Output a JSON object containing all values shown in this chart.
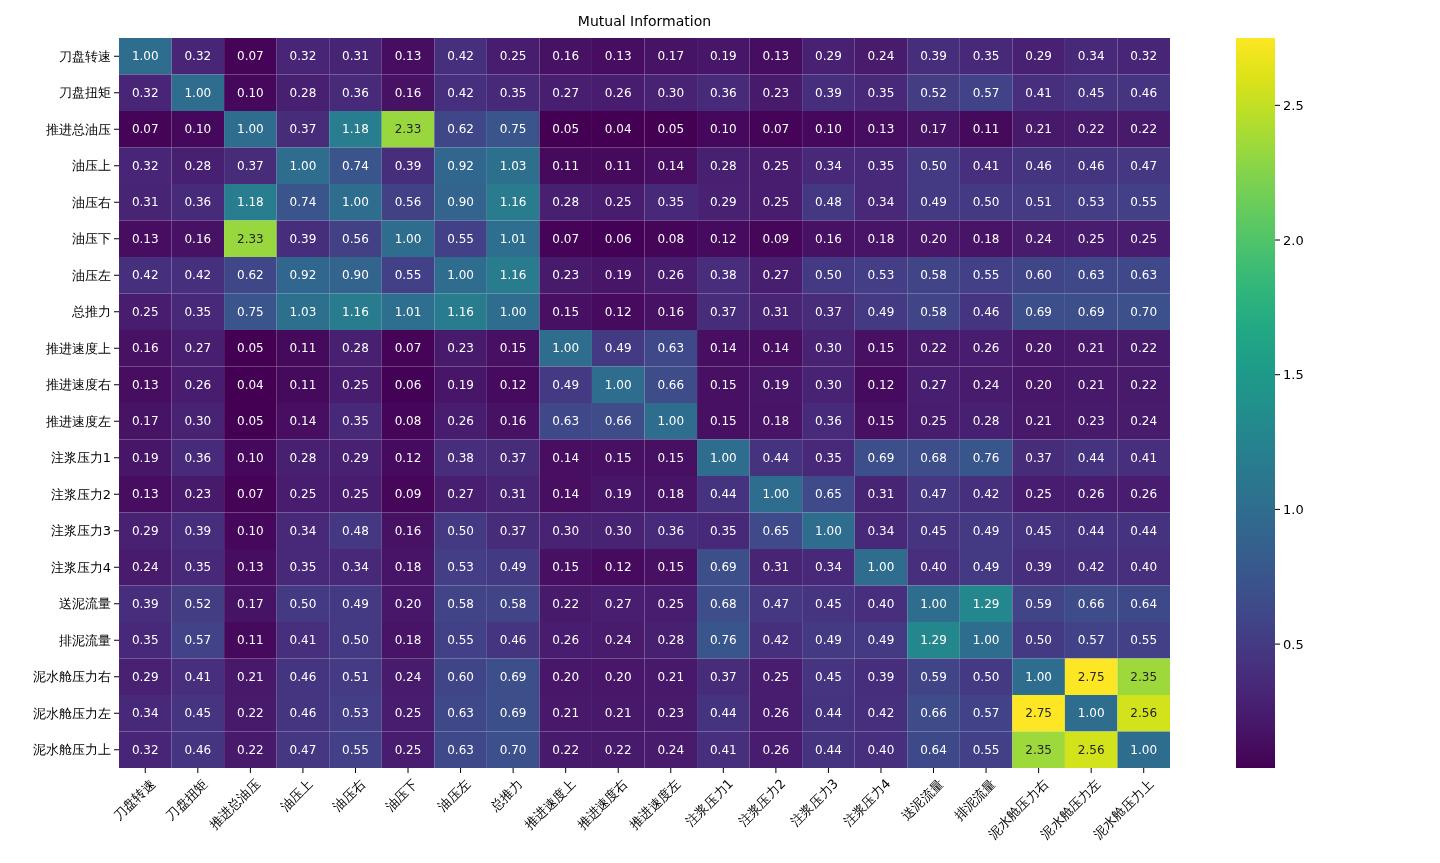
{
  "chart_data": {
    "type": "heatmap",
    "title": "Mutual Information",
    "categories": [
      "刀盘转速",
      "刀盘扭矩",
      "推进总油压",
      "油压上",
      "油压右",
      "油压下",
      "油压左",
      "总推力",
      "推进速度上",
      "推进速度右",
      "推进速度左",
      "注浆压力1",
      "注浆压力2",
      "注浆压力3",
      "注浆压力4",
      "送泥流量",
      "排泥流量",
      "泥水舱压力右",
      "泥水舱压力左",
      "泥水舱压力上"
    ],
    "y_categories": [
      "刀盘转速",
      "刀盘扭矩",
      "推进总油压",
      "油压上",
      "油压右",
      "油压下",
      "油压左",
      "总推力",
      "推进速度上",
      "推进速度右",
      "推进速度左",
      "注浆压力1",
      "注浆压力2",
      "注浆压力3",
      "注浆压力4",
      "送泥流量",
      "排泥流量",
      "泥水舱压力右",
      "泥水舱压力左",
      "泥水舱压力上"
    ],
    "cells": [
      [
        1.0,
        0.32,
        0.07,
        0.32,
        0.31,
        0.13,
        0.42,
        0.25,
        0.16,
        0.13,
        0.17,
        0.19,
        0.13,
        0.29,
        0.24,
        0.39,
        0.35,
        0.29,
        0.34,
        0.32
      ],
      [
        0.32,
        1.0,
        0.1,
        0.28,
        0.36,
        0.16,
        0.42,
        0.35,
        0.27,
        0.26,
        0.3,
        0.36,
        0.23,
        0.39,
        0.35,
        0.52,
        0.57,
        0.41,
        0.45,
        0.46
      ],
      [
        0.07,
        0.1,
        1.0,
        0.37,
        1.18,
        2.33,
        0.62,
        0.75,
        0.05,
        0.04,
        0.05,
        0.1,
        0.07,
        0.1,
        0.13,
        0.17,
        0.11,
        0.21,
        0.22,
        0.22
      ],
      [
        0.32,
        0.28,
        0.37,
        1.0,
        0.74,
        0.39,
        0.92,
        1.03,
        0.11,
        0.11,
        0.14,
        0.28,
        0.25,
        0.34,
        0.35,
        0.5,
        0.41,
        0.46,
        0.46,
        0.47
      ],
      [
        0.31,
        0.36,
        1.18,
        0.74,
        1.0,
        0.56,
        0.9,
        1.16,
        0.28,
        0.25,
        0.35,
        0.29,
        0.25,
        0.48,
        0.34,
        0.49,
        0.5,
        0.51,
        0.53,
        0.55
      ],
      [
        0.13,
        0.16,
        2.33,
        0.39,
        0.56,
        1.0,
        0.55,
        1.01,
        0.07,
        0.06,
        0.08,
        0.12,
        0.09,
        0.16,
        0.18,
        0.2,
        0.18,
        0.24,
        0.25,
        0.25
      ],
      [
        0.42,
        0.42,
        0.62,
        0.92,
        0.9,
        0.55,
        1.0,
        1.16,
        0.23,
        0.19,
        0.26,
        0.38,
        0.27,
        0.5,
        0.53,
        0.58,
        0.55,
        0.6,
        0.63,
        0.63
      ],
      [
        0.25,
        0.35,
        0.75,
        1.03,
        1.16,
        1.01,
        1.16,
        1.0,
        0.15,
        0.12,
        0.16,
        0.37,
        0.31,
        0.37,
        0.49,
        0.58,
        0.46,
        0.69,
        0.69,
        0.7
      ],
      [
        0.16,
        0.27,
        0.05,
        0.11,
        0.28,
        0.07,
        0.23,
        0.15,
        1.0,
        0.49,
        0.63,
        0.14,
        0.14,
        0.3,
        0.15,
        0.22,
        0.26,
        0.2,
        0.21,
        0.22
      ],
      [
        0.13,
        0.26,
        0.04,
        0.11,
        0.25,
        0.06,
        0.19,
        0.12,
        0.49,
        1.0,
        0.66,
        0.15,
        0.19,
        0.3,
        0.12,
        0.27,
        0.24,
        0.2,
        0.21,
        0.22
      ],
      [
        0.17,
        0.3,
        0.05,
        0.14,
        0.35,
        0.08,
        0.26,
        0.16,
        0.63,
        0.66,
        1.0,
        0.15,
        0.18,
        0.36,
        0.15,
        0.25,
        0.28,
        0.21,
        0.23,
        0.24
      ],
      [
        0.19,
        0.36,
        0.1,
        0.28,
        0.29,
        0.12,
        0.38,
        0.37,
        0.14,
        0.15,
        0.15,
        1.0,
        0.44,
        0.35,
        0.69,
        0.68,
        0.76,
        0.37,
        0.44,
        0.41
      ],
      [
        0.13,
        0.23,
        0.07,
        0.25,
        0.25,
        0.09,
        0.27,
        0.31,
        0.14,
        0.19,
        0.18,
        0.44,
        1.0,
        0.65,
        0.31,
        0.47,
        0.42,
        0.25,
        0.26,
        0.26
      ],
      [
        0.29,
        0.39,
        0.1,
        0.34,
        0.48,
        0.16,
        0.5,
        0.37,
        0.3,
        0.3,
        0.36,
        0.35,
        0.65,
        1.0,
        0.34,
        0.45,
        0.49,
        0.45,
        0.44,
        0.44
      ],
      [
        0.24,
        0.35,
        0.13,
        0.35,
        0.34,
        0.18,
        0.53,
        0.49,
        0.15,
        0.12,
        0.15,
        0.69,
        0.31,
        0.34,
        1.0,
        0.4,
        0.49,
        0.39,
        0.42,
        0.4
      ],
      [
        0.39,
        0.52,
        0.17,
        0.5,
        0.49,
        0.2,
        0.58,
        0.58,
        0.22,
        0.27,
        0.25,
        0.68,
        0.47,
        0.45,
        0.4,
        1.0,
        1.29,
        0.59,
        0.66,
        0.64
      ],
      [
        0.35,
        0.57,
        0.11,
        0.41,
        0.5,
        0.18,
        0.55,
        0.46,
        0.26,
        0.24,
        0.28,
        0.76,
        0.42,
        0.49,
        0.49,
        1.29,
        1.0,
        0.5,
        0.57,
        0.55
      ],
      [
        0.29,
        0.41,
        0.21,
        0.46,
        0.51,
        0.24,
        0.6,
        0.69,
        0.2,
        0.2,
        0.21,
        0.37,
        0.25,
        0.45,
        0.39,
        0.59,
        0.5,
        1.0,
        2.75,
        2.35
      ],
      [
        0.34,
        0.45,
        0.22,
        0.46,
        0.53,
        0.25,
        0.63,
        0.69,
        0.21,
        0.21,
        0.23,
        0.44,
        0.26,
        0.44,
        0.42,
        0.66,
        0.57,
        2.75,
        1.0,
        2.56
      ],
      [
        0.32,
        0.46,
        0.22,
        0.47,
        0.55,
        0.25,
        0.63,
        0.7,
        0.22,
        0.22,
        0.24,
        0.41,
        0.26,
        0.44,
        0.4,
        0.64,
        0.55,
        2.35,
        2.56,
        1.0
      ]
    ],
    "clim": [
      0.04,
      2.75
    ],
    "cticks": [
      0.5,
      {
        "value": 1,
        "label": "1.0"
      },
      1.5,
      {
        "value": 2,
        "label": "2.0"
      },
      2.5
    ],
    "cell_labels": [
      [
        "1.00",
        "0.32",
        "0.07",
        "0.32",
        "0.31",
        "0.13",
        "0.42",
        "0.25",
        "0.16",
        "0.13",
        "0.17",
        "0.19",
        "0.13",
        "0.29",
        "0.24",
        "0.39",
        "0.35",
        "0.29",
        "0.34",
        "0.32"
      ],
      [
        "0.32",
        "1.00",
        "0.10",
        "0.28",
        "0.36",
        "0.16",
        "0.42",
        "0.35",
        "0.27",
        "0.26",
        "0.30",
        "0.36",
        "0.23",
        "0.39",
        "0.35",
        "0.52",
        "0.57",
        "0.41",
        "0.45",
        "0.46"
      ],
      [
        "0.07",
        "0.10",
        "1.00",
        "0.37",
        "1.18",
        "2.33",
        "0.62",
        "0.75",
        "0.05",
        "0.04",
        "0.05",
        "0.10",
        "0.07",
        "0.10",
        "0.13",
        "0.17",
        "0.11",
        "0.21",
        "0.22",
        "0.22"
      ],
      [
        "0.32",
        "0.28",
        "0.37",
        "1.00",
        "0.74",
        "0.39",
        "0.92",
        "1.03",
        "0.11",
        "0.11",
        "0.14",
        "0.28",
        "0.25",
        "0.34",
        "0.35",
        "0.50",
        "0.41",
        "0.46",
        "0.46",
        "0.47"
      ],
      [
        "0.31",
        "0.36",
        "1.18",
        "0.74",
        "1.00",
        "0.56",
        "0.90",
        "1.16",
        "0.28",
        "0.25",
        "0.35",
        "0.29",
        "0.25",
        "0.48",
        "0.34",
        "0.49",
        "0.50",
        "0.51",
        "0.53",
        "0.55"
      ],
      [
        "0.13",
        "0.16",
        "2.33",
        "0.39",
        "0.56",
        "1.00",
        "0.55",
        "1.01",
        "0.07",
        "0.06",
        "0.08",
        "0.12",
        "0.09",
        "0.16",
        "0.18",
        "0.20",
        "0.18",
        "0.24",
        "0.25",
        "0.25"
      ],
      [
        "0.42",
        "0.42",
        "0.62",
        "0.92",
        "0.90",
        "0.55",
        "1.00",
        "1.16",
        "0.23",
        "0.19",
        "0.26",
        "0.38",
        "0.27",
        "0.50",
        "0.53",
        "0.58",
        "0.55",
        "0.60",
        "0.63",
        "0.63"
      ],
      [
        "0.25",
        "0.35",
        "0.75",
        "1.03",
        "1.16",
        "1.01",
        "1.16",
        "1.00",
        "0.15",
        "0.12",
        "0.16",
        "0.37",
        "0.31",
        "0.37",
        "0.49",
        "0.58",
        "0.46",
        "0.69",
        "0.69",
        "0.70"
      ],
      [
        "0.16",
        "0.27",
        "0.05",
        "0.11",
        "0.28",
        "0.07",
        "0.23",
        "0.15",
        "1.00",
        "0.49",
        "0.63",
        "0.14",
        "0.14",
        "0.30",
        "0.15",
        "0.22",
        "0.26",
        "0.20",
        "0.21",
        "0.22"
      ],
      [
        "0.13",
        "0.26",
        "0.04",
        "0.11",
        "0.25",
        "0.06",
        "0.19",
        "0.12",
        "0.49",
        "1.00",
        "0.66",
        "0.15",
        "0.19",
        "0.30",
        "0.12",
        "0.27",
        "0.24",
        "0.20",
        "0.21",
        "0.22"
      ],
      [
        "0.17",
        "0.30",
        "0.05",
        "0.14",
        "0.35",
        "0.08",
        "0.26",
        "0.16",
        "0.63",
        "0.66",
        "1.00",
        "0.15",
        "0.18",
        "0.36",
        "0.15",
        "0.25",
        "0.28",
        "0.21",
        "0.23",
        "0.24"
      ],
      [
        "0.19",
        "0.36",
        "0.10",
        "0.28",
        "0.29",
        "0.12",
        "0.38",
        "0.37",
        "0.14",
        "0.15",
        "0.15",
        "1.00",
        "0.44",
        "0.35",
        "0.69",
        "0.68",
        "0.76",
        "0.37",
        "0.44",
        "0.41"
      ],
      [
        "0.13",
        "0.23",
        "0.07",
        "0.25",
        "0.25",
        "0.09",
        "0.27",
        "0.31",
        "0.14",
        "0.19",
        "0.18",
        "0.44",
        "1.00",
        "0.65",
        "0.31",
        "0.47",
        "0.42",
        "0.25",
        "0.26",
        "0.26"
      ],
      [
        "0.29",
        "0.39",
        "0.10",
        "0.34",
        "0.48",
        "0.16",
        "0.50",
        "0.37",
        "0.30",
        "0.30",
        "0.36",
        "0.35",
        "0.65",
        "1.00",
        "0.34",
        "0.45",
        "0.49",
        "0.45",
        "0.44",
        "0.44"
      ],
      [
        "0.24",
        "0.35",
        "0.13",
        "0.35",
        "0.34",
        "0.18",
        "0.53",
        "0.49",
        "0.15",
        "0.12",
        "0.15",
        "0.69",
        "0.31",
        "0.34",
        "1.00",
        "0.40",
        "0.49",
        "0.39",
        "0.42",
        "0.40"
      ],
      [
        "0.39",
        "0.52",
        "0.17",
        "0.50",
        "0.49",
        "0.20",
        "0.58",
        "0.58",
        "0.22",
        "0.27",
        "0.25",
        "0.68",
        "0.47",
        "0.45",
        "0.40",
        "1.00",
        "1.29",
        "0.59",
        "0.66",
        "0.64"
      ],
      [
        "0.35",
        "0.57",
        "0.11",
        "0.41",
        "0.50",
        "0.18",
        "0.55",
        "0.46",
        "0.26",
        "0.24",
        "0.28",
        "0.76",
        "0.42",
        "0.49",
        "0.49",
        "1.29",
        "1.00",
        "0.50",
        "0.57",
        "0.55"
      ],
      [
        "0.29",
        "0.41",
        "0.21",
        "0.46",
        "0.51",
        "0.24",
        "0.60",
        "0.69",
        "0.20",
        "0.20",
        "0.21",
        "0.37",
        "0.25",
        "0.45",
        "0.39",
        "0.59",
        "0.50",
        "1.00",
        "2.75",
        "2.35"
      ],
      [
        "0.34",
        "0.45",
        "0.22",
        "0.46",
        "0.53",
        "0.25",
        "0.63",
        "0.69",
        "0.21",
        "0.21",
        "0.23",
        "0.44",
        "0.26",
        "0.44",
        "0.42",
        "0.66",
        "0.57",
        "2.75",
        "1.00",
        "2.56"
      ],
      [
        "0.32",
        "0.46",
        "0.22",
        "0.47",
        "0.55",
        "0.25",
        "0.63",
        "0.70",
        "0.22",
        "0.22",
        "0.24",
        "0.41",
        "0.26",
        "0.44",
        "0.40",
        "0.64",
        "0.55",
        "2.35",
        "2.56",
        "1.00"
      ]
    ]
  }
}
